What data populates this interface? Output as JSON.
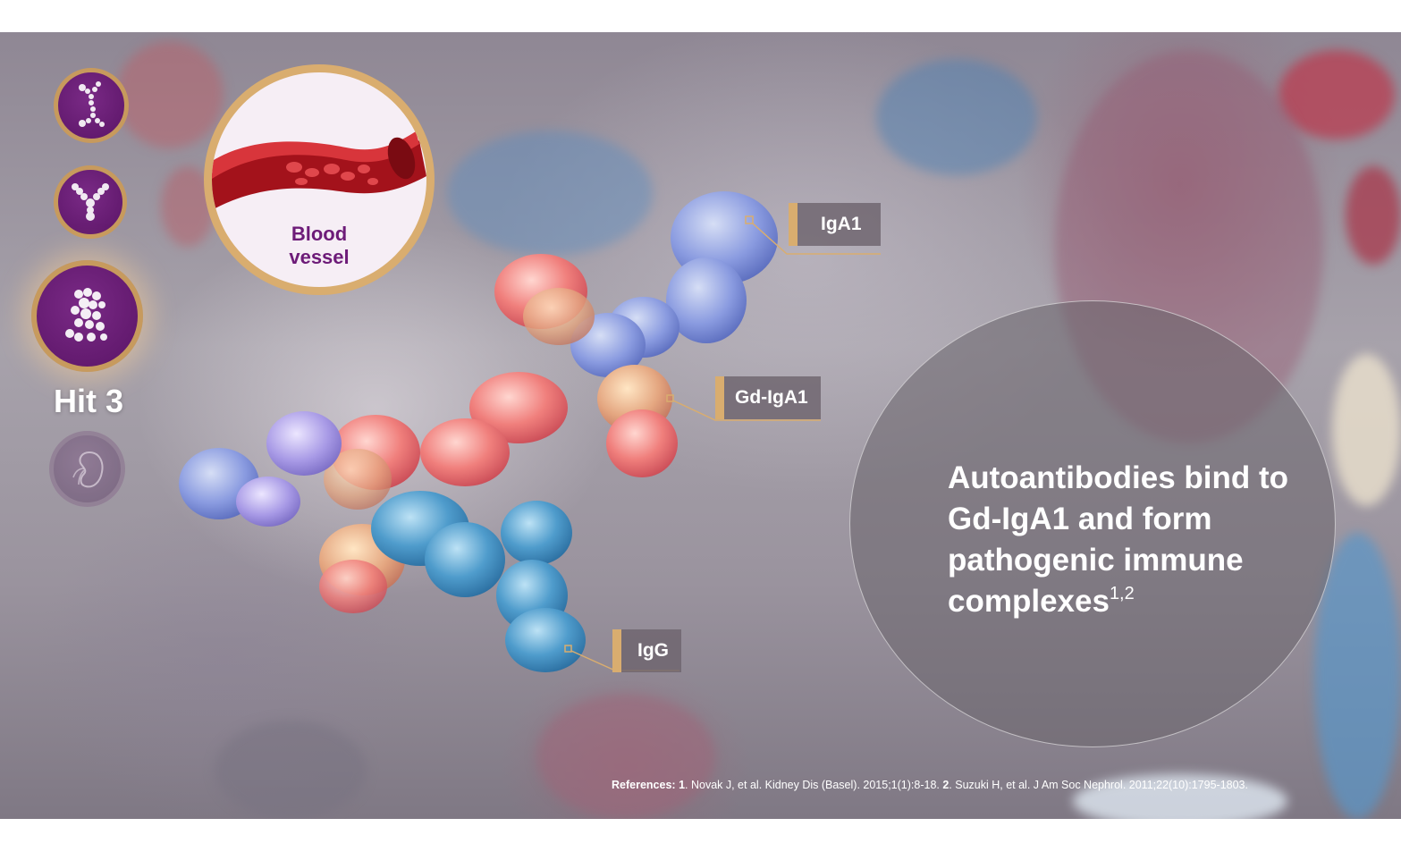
{
  "nav": {
    "hit_label": "Hit 3",
    "icons": [
      "antibody-chain-icon",
      "antibody-icon",
      "immune-complex-icon",
      "kidney-icon"
    ]
  },
  "vessel": {
    "label_line1": "Blood",
    "label_line2": "vessel"
  },
  "callouts": {
    "iga1": "IgA1",
    "gd_iga1": "Gd-IgA1",
    "igg": "IgG"
  },
  "statement": {
    "text": "Autoantibodies bind to Gd-IgA1 and form pathogenic immune complexes",
    "superscript": "1,2"
  },
  "references": {
    "label": "References:",
    "ref1_num": "1",
    "ref1_text": ". Novak J, et al. Kidney Dis (Basel). 2015;1(1):8-18. ",
    "ref2_num": "2",
    "ref2_text": ". Suzuki H, et al. J Am Soc Nephrol. 2011;22(10):1795-1803."
  },
  "colors": {
    "accent_gold": "#d9ad6f",
    "brand_purple": "#6d1b78",
    "vessel_red": "#c81d25"
  }
}
